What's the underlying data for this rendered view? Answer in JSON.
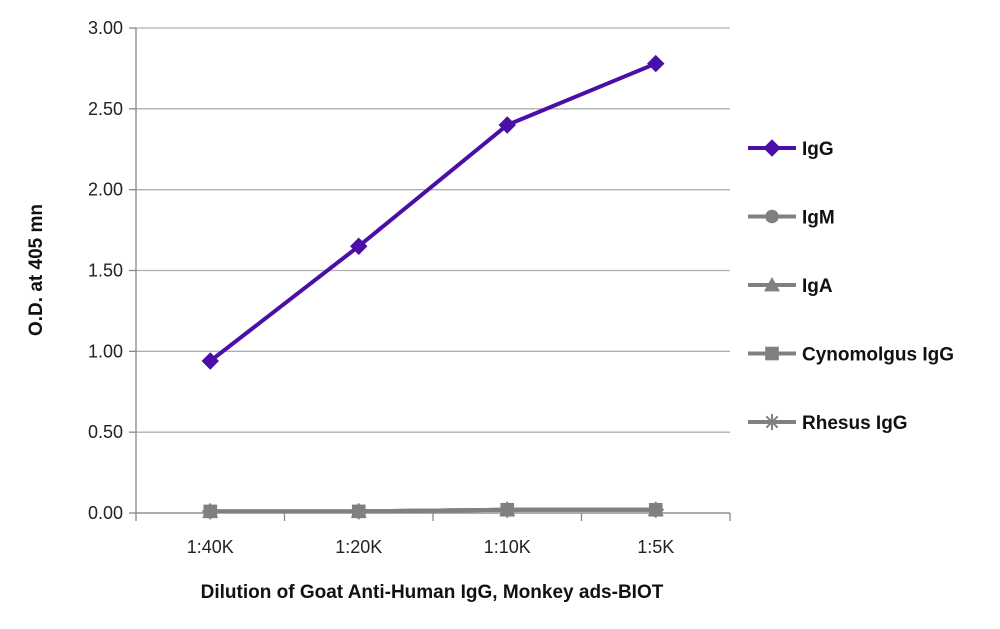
{
  "chart_data": {
    "type": "line",
    "title": "",
    "xlabel": "Dilution of Goat Anti-Human IgG, Monkey ads-BIOT",
    "ylabel": "O.D. at 405 mn",
    "categories": [
      "1:40K",
      "1:20K",
      "1:10K",
      "1:5K"
    ],
    "ylim": [
      0,
      3.0
    ],
    "yticks": [
      "0.00",
      "0.50",
      "1.00",
      "1.50",
      "2.00",
      "2.50",
      "3.00"
    ],
    "grid": true,
    "legend_position": "right",
    "series": [
      {
        "name": "IgG",
        "values": [
          0.94,
          1.65,
          2.4,
          2.78
        ],
        "color": "#4b0ea6",
        "marker": "diamond"
      },
      {
        "name": "IgM",
        "values": [
          0.01,
          0.01,
          0.02,
          0.02
        ],
        "color": "#808080",
        "marker": "circle"
      },
      {
        "name": "IgA",
        "values": [
          0.01,
          0.01,
          0.02,
          0.02
        ],
        "color": "#808080",
        "marker": "triangle"
      },
      {
        "name": "Cynomolgus IgG",
        "values": [
          0.01,
          0.01,
          0.02,
          0.02
        ],
        "color": "#808080",
        "marker": "square"
      },
      {
        "name": "Rhesus IgG",
        "values": [
          0.01,
          0.01,
          0.02,
          0.02
        ],
        "color": "#808080",
        "marker": "asterisk"
      }
    ]
  }
}
